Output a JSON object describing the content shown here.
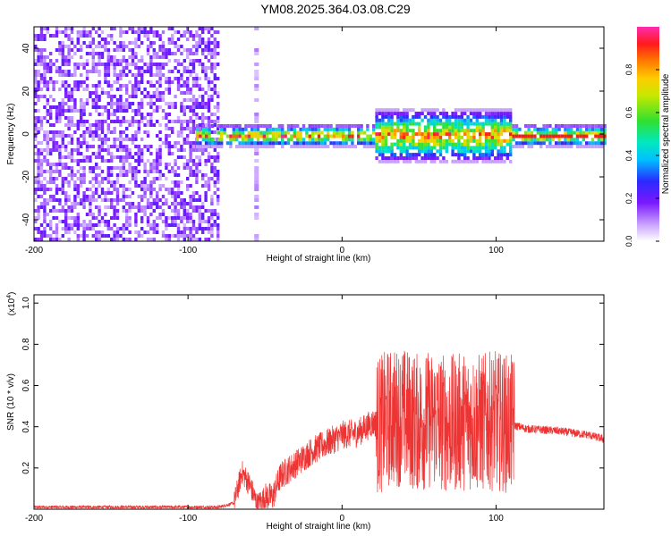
{
  "title": "YM08.2025.364.03.08.C29",
  "chart_data": [
    {
      "type": "heatmap",
      "xlabel": "Height of straight line (km)",
      "ylabel": "Frequency (Hz)",
      "xlim": [
        -200,
        170
      ],
      "ylim": [
        -50,
        50
      ],
      "xticks": [
        -200,
        -100,
        0,
        100
      ],
      "yticks": [
        -40,
        -20,
        0,
        20,
        40
      ],
      "colorbar": {
        "label": "Normalized spectral amplitude",
        "range": [
          0,
          1
        ],
        "ticks": [
          0.0,
          0.2,
          0.4,
          0.6,
          0.8
        ],
        "colormap": "rainbow"
      },
      "regions": [
        {
          "x": [
            -200,
            -80
          ],
          "description": "broadband noise across all frequencies"
        },
        {
          "x": [
            -95,
            170
          ],
          "description": "narrow band centred near 0 Hz"
        }
      ]
    },
    {
      "type": "line",
      "xlabel": "Height of straight line (km)",
      "ylabel": "SNR (10 * v/v)",
      "ylabel_multiplier": "(x10",
      "ylabel_exponent": "4",
      "ylabel_multiplier_close": ")",
      "xlim": [
        -200,
        170
      ],
      "ylim": [
        0,
        1.04
      ],
      "xticks": [
        -200,
        -100,
        0,
        100
      ],
      "yticks": [
        0.2,
        0.4,
        0.6,
        0.8,
        1.0
      ],
      "line_color": "#ee3333",
      "series": [
        {
          "x": [
            -200,
            -150,
            -100,
            -80,
            -70,
            -65,
            -60,
            -55,
            -50,
            -45,
            -40,
            -30,
            -20,
            -10,
            0,
            10,
            20,
            25,
            30,
            40,
            45,
            50,
            60,
            70,
            80,
            90,
            100,
            110,
            120,
            140,
            160,
            170
          ],
          "y": [
            0.01,
            0.01,
            0.01,
            0.01,
            0.03,
            0.18,
            0.12,
            0.02,
            0.06,
            0.06,
            0.16,
            0.22,
            0.28,
            0.32,
            0.36,
            0.37,
            0.42,
            0.41,
            0.44,
            0.45,
            0.43,
            0.42,
            0.44,
            0.41,
            0.43,
            0.42,
            0.43,
            0.41,
            0.39,
            0.38,
            0.36,
            0.34
          ]
        }
      ]
    }
  ]
}
